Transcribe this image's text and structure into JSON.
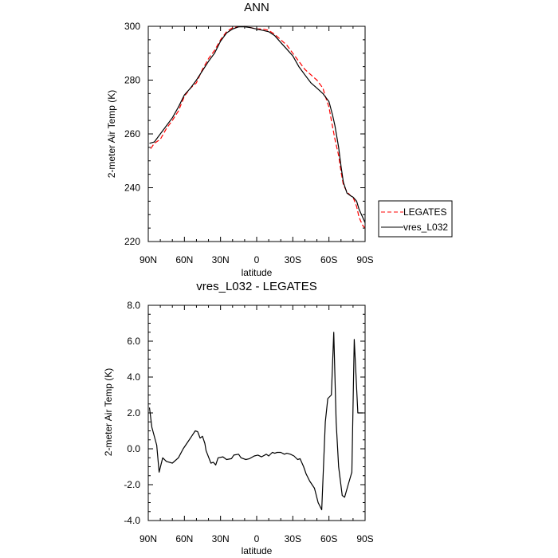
{
  "chart_data": [
    {
      "type": "line",
      "title": "ANN",
      "xlabel": "latitude",
      "ylabel": "2-meter Air Temp (K)",
      "xlim": [
        -90,
        90
      ],
      "ylim": [
        220,
        300
      ],
      "x_ticks": [
        -90,
        -60,
        -30,
        0,
        30,
        60,
        90
      ],
      "x_tick_labels": [
        "90N",
        "60N",
        "30N",
        "0",
        "30S",
        "60S",
        "90S"
      ],
      "y_ticks": [
        220,
        240,
        260,
        280,
        300
      ],
      "y_tick_labels": [
        "220",
        "240",
        "260",
        "280",
        "300"
      ],
      "legend": "right",
      "series": [
        {
          "name": "LEGATES",
          "color": "#ff0000",
          "dash": "dashed",
          "x": [
            -88,
            -85,
            -80,
            -75,
            -70,
            -65,
            -60,
            -55,
            -50,
            -45,
            -40,
            -35,
            -30,
            -25,
            -20,
            -15,
            -10,
            -5,
            0,
            5,
            10,
            15,
            20,
            25,
            30,
            35,
            40,
            45,
            50,
            55,
            57,
            60,
            62,
            65,
            68,
            70,
            72,
            75,
            78,
            80,
            83,
            85,
            88,
            90
          ],
          "y": [
            254.5,
            256.5,
            258,
            262,
            265,
            268.5,
            274,
            277,
            279,
            284,
            288,
            291,
            295,
            298,
            299.5,
            299.8,
            300,
            299.5,
            299,
            299,
            298.5,
            297,
            295,
            293,
            290,
            287,
            284,
            282,
            280,
            277,
            274,
            270,
            265,
            258,
            252,
            246,
            241,
            238.5,
            237,
            236.5,
            233,
            229,
            226,
            225
          ]
        },
        {
          "name": "vres_L032",
          "color": "#000000",
          "dash": "solid",
          "x": [
            -89,
            -85,
            -80,
            -75,
            -70,
            -65,
            -60,
            -55,
            -50,
            -45,
            -40,
            -35,
            -30,
            -25,
            -20,
            -15,
            -10,
            -5,
            0,
            5,
            10,
            15,
            20,
            25,
            30,
            35,
            40,
            45,
            50,
            55,
            60,
            63,
            65,
            68,
            70,
            72,
            75,
            78,
            80,
            83,
            85,
            88,
            90
          ],
          "y": [
            256.5,
            257,
            260,
            263,
            266,
            270,
            274.5,
            277,
            280,
            283.5,
            287,
            290,
            294.5,
            297.5,
            299,
            299.8,
            299.8,
            299.5,
            299,
            298.5,
            298,
            296.5,
            294,
            291.5,
            289,
            285,
            282,
            279,
            277,
            275,
            272,
            267,
            263,
            255,
            248,
            242,
            238,
            237,
            236.5,
            235,
            232,
            229,
            227
          ]
        }
      ]
    },
    {
      "type": "line",
      "title": "vres_L032 - LEGATES",
      "xlabel": "latitude",
      "ylabel": "2-meter Air Temp (K)",
      "xlim": [
        -90,
        90
      ],
      "ylim": [
        -4,
        8
      ],
      "x_ticks": [
        -90,
        -60,
        -30,
        0,
        30,
        60,
        90
      ],
      "x_tick_labels": [
        "90N",
        "60N",
        "30N",
        "0",
        "30S",
        "60S",
        "90S"
      ],
      "y_ticks": [
        -4,
        -2,
        0,
        2,
        4,
        6,
        8
      ],
      "y_tick_labels": [
        "-4.0",
        "-2.0",
        "0.0",
        "2.0",
        "4.0",
        "6.0",
        "8.0"
      ],
      "series": [
        {
          "color": "#000000",
          "dash": "solid",
          "x": [
            -89,
            -87,
            -83,
            -81,
            -78,
            -75,
            -70,
            -65,
            -61,
            -57,
            -54,
            -51,
            -49,
            -47,
            -45,
            -43,
            -42,
            -38,
            -36,
            -34,
            -32,
            -28,
            -25,
            -21,
            -19,
            -15,
            -13,
            -9,
            -6,
            -2,
            1,
            4,
            8,
            10,
            13,
            15,
            17,
            20,
            23,
            25,
            28,
            31,
            34,
            36,
            39,
            41,
            44,
            48,
            51,
            54,
            57,
            59,
            62,
            64,
            66,
            68,
            71,
            73,
            76,
            79,
            81,
            84,
            86,
            88
          ],
          "y": [
            2.3,
            1.2,
            0.2,
            -1.3,
            -0.5,
            -0.7,
            -0.8,
            -0.5,
            0.0,
            0.4,
            0.7,
            1.0,
            0.95,
            0.6,
            0.7,
            0.3,
            -0.1,
            -0.8,
            -0.75,
            -0.9,
            -0.5,
            -0.45,
            -0.6,
            -0.55,
            -0.35,
            -0.3,
            -0.5,
            -0.6,
            -0.55,
            -0.4,
            -0.35,
            -0.45,
            -0.3,
            -0.4,
            -0.2,
            -0.25,
            -0.2,
            -0.2,
            -0.3,
            -0.25,
            -0.3,
            -0.4,
            -0.6,
            -0.55,
            -1.0,
            -1.4,
            -1.8,
            -2.2,
            -3.0,
            -3.4,
            1.5,
            2.8,
            3.0,
            6.5,
            1.5,
            -1.0,
            -2.6,
            -2.7,
            -2.0,
            -1.3,
            6.1,
            2.0,
            2.0,
            2.0
          ]
        }
      ]
    }
  ]
}
